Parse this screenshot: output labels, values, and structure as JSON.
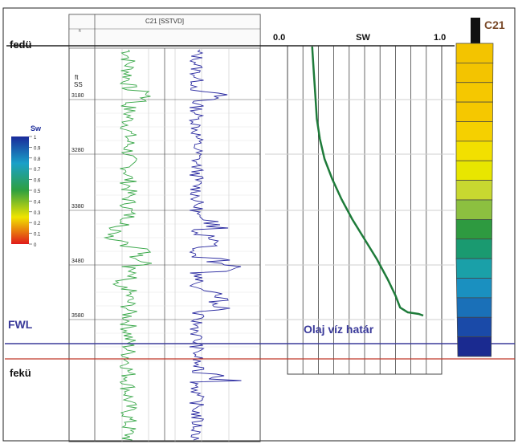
{
  "labels": {
    "top": "fedü",
    "bottom": "fekü",
    "fwl": "FWL",
    "contact": "Olaj víz határ",
    "well": "C21"
  },
  "legend": {
    "title": "Sw",
    "ticks": [
      "1",
      "0.9",
      "0.8",
      "0.7",
      "0.6",
      "0.5",
      "0.4",
      "0.3",
      "0.2",
      "0.1",
      "0"
    ]
  },
  "log_panel": {
    "header": "C21 [SSTVD]",
    "depth_ticks": [
      "3180",
      "3280",
      "3380",
      "3480",
      "3580"
    ],
    "depth_header": [
      "ft",
      "SS"
    ]
  },
  "sw_panel": {
    "title": "SW",
    "axis_min": "0.0",
    "axis_max": "1.0",
    "curve": [
      [
        0.16,
        0
      ],
      [
        0.17,
        30
      ],
      [
        0.18,
        60
      ],
      [
        0.19,
        90
      ],
      [
        0.21,
        115
      ],
      [
        0.24,
        140
      ],
      [
        0.29,
        165
      ],
      [
        0.35,
        190
      ],
      [
        0.42,
        215
      ],
      [
        0.5,
        240
      ],
      [
        0.58,
        265
      ],
      [
        0.65,
        290
      ],
      [
        0.7,
        310
      ],
      [
        0.73,
        325
      ],
      [
        0.78,
        331
      ],
      [
        0.85,
        333
      ],
      [
        0.88,
        335
      ]
    ]
  },
  "colors": {
    "fwl_line": "#3a3a9a",
    "contact_line": "#c0392b",
    "sw_curve": "#1e7b3a",
    "gr_curve": "#3aa84a",
    "res_curve": "#2a2aa0",
    "contact_text": "#3a3a9a",
    "well_text": "#7a4a2a"
  },
  "column_colors": [
    "#f3c400",
    "#f3c400",
    "#f5c800",
    "#f5c800",
    "#f5d000",
    "#f2e000",
    "#e8e600",
    "#c8d830",
    "#8cc040",
    "#2e9a40",
    "#1a9a70",
    "#1aa0a8",
    "#1a90c0",
    "#1a70b8",
    "#1a4aa8",
    "#1a2a90"
  ]
}
